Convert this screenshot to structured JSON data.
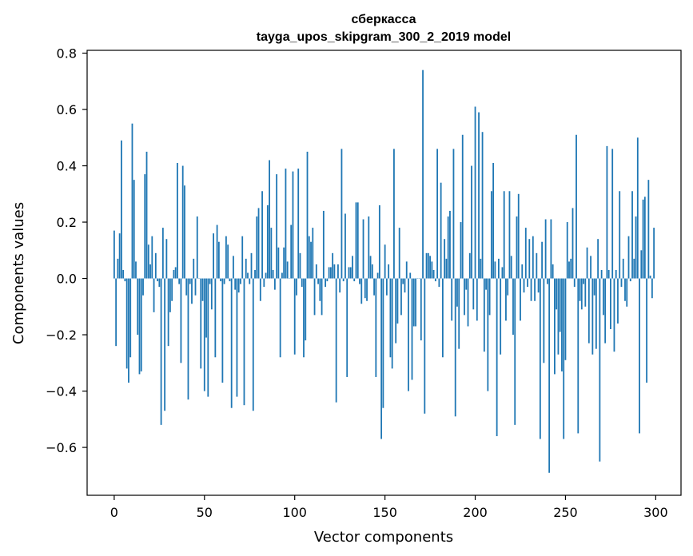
{
  "chart_data": {
    "type": "bar",
    "title": "сберкасса",
    "subtitle": "tayga_upos_skipgram_300_2_2019 model",
    "xlabel": "Vector components",
    "ylabel": "Components values",
    "xlim": [
      -15,
      314
    ],
    "ylim": [
      -0.77,
      0.81
    ],
    "xticks": [
      0,
      50,
      100,
      150,
      200,
      250,
      300
    ],
    "xtick_labels": [
      "0",
      "50",
      "100",
      "150",
      "200",
      "250",
      "300"
    ],
    "yticks": [
      -0.6,
      -0.4,
      -0.2,
      0.0,
      0.2,
      0.4,
      0.6,
      0.8
    ],
    "ytick_labels": [
      "−0.6",
      "−0.4",
      "−0.2",
      "0.0",
      "0.2",
      "0.4",
      "0.6",
      "0.8"
    ],
    "grid": false,
    "legend": "none",
    "bar_color": "#1f77b4",
    "x": "0..299",
    "values": [
      0.17,
      -0.24,
      0.07,
      0.16,
      0.49,
      0.03,
      -0.01,
      -0.32,
      -0.37,
      -0.28,
      0.55,
      0.35,
      0.06,
      -0.2,
      -0.34,
      -0.33,
      -0.06,
      0.37,
      0.45,
      0.12,
      0.05,
      0.15,
      -0.12,
      0.09,
      -0.01,
      -0.03,
      -0.52,
      0.18,
      -0.47,
      0.14,
      -0.24,
      -0.12,
      -0.08,
      0.03,
      0.04,
      0.41,
      -0.02,
      -0.3,
      0.4,
      0.33,
      -0.06,
      -0.43,
      -0.02,
      -0.09,
      0.07,
      -0.06,
      0.22,
      0.0,
      -0.32,
      -0.08,
      -0.4,
      -0.21,
      -0.42,
      -0.02,
      -0.11,
      0.16,
      -0.28,
      0.19,
      0.13,
      -0.01,
      -0.37,
      -0.02,
      0.15,
      0.12,
      -0.01,
      -0.46,
      0.08,
      -0.04,
      -0.42,
      -0.05,
      -0.02,
      0.15,
      -0.45,
      0.07,
      0.02,
      -0.02,
      0.09,
      -0.47,
      0.03,
      0.22,
      0.25,
      -0.08,
      0.31,
      -0.03,
      0.02,
      0.26,
      0.42,
      0.18,
      0.03,
      -0.04,
      0.37,
      0.11,
      -0.28,
      0.02,
      0.11,
      0.39,
      0.06,
      0.0,
      0.19,
      0.38,
      -0.27,
      -0.06,
      0.39,
      0.09,
      -0.03,
      -0.28,
      -0.22,
      0.45,
      0.15,
      0.13,
      0.18,
      -0.13,
      0.05,
      -0.02,
      -0.08,
      -0.13,
      0.24,
      -0.03,
      -0.01,
      0.04,
      0.04,
      0.09,
      0.05,
      -0.44,
      0.05,
      -0.05,
      0.46,
      -0.01,
      0.23,
      -0.35,
      0.04,
      0.04,
      0.08,
      -0.01,
      0.27,
      0.27,
      -0.02,
      -0.09,
      0.21,
      -0.07,
      -0.08,
      0.22,
      0.08,
      0.05,
      -0.06,
      -0.35,
      0.02,
      0.26,
      -0.57,
      -0.46,
      0.12,
      -0.06,
      0.05,
      -0.28,
      -0.32,
      0.46,
      -0.23,
      -0.16,
      0.18,
      -0.13,
      -0.02,
      -0.05,
      0.06,
      -0.4,
      0.02,
      -0.36,
      -0.17,
      -0.17,
      0.0,
      0.0,
      -0.22,
      0.74,
      -0.48,
      0.09,
      0.09,
      0.08,
      0.06,
      0.03,
      -0.01,
      0.46,
      -0.03,
      0.34,
      -0.28,
      0.14,
      0.07,
      0.22,
      0.24,
      -0.15,
      0.46,
      -0.49,
      -0.1,
      -0.25,
      0.2,
      0.51,
      -0.13,
      -0.04,
      -0.17,
      0.09,
      0.4,
      -0.11,
      0.61,
      -0.15,
      0.59,
      0.07,
      0.52,
      -0.26,
      -0.04,
      -0.4,
      -0.13,
      0.31,
      0.41,
      0.06,
      -0.56,
      0.07,
      -0.27,
      0.04,
      0.31,
      -0.15,
      -0.06,
      0.31,
      0.08,
      -0.2,
      -0.52,
      0.22,
      0.3,
      -0.15,
      0.05,
      -0.05,
      0.18,
      -0.03,
      0.14,
      -0.08,
      0.15,
      -0.08,
      0.09,
      -0.05,
      -0.57,
      0.13,
      -0.3,
      0.21,
      -0.02,
      -0.69,
      0.21,
      0.05,
      -0.34,
      -0.11,
      -0.27,
      -0.19,
      -0.33,
      -0.57,
      -0.29,
      0.2,
      0.06,
      0.07,
      0.25,
      -0.03,
      0.51,
      -0.55,
      -0.08,
      -0.11,
      -0.02,
      -0.1,
      0.11,
      -0.23,
      0.08,
      -0.27,
      -0.06,
      -0.25,
      0.14,
      -0.65,
      0.03,
      -0.13,
      -0.23,
      0.47,
      0.03,
      -0.18,
      0.46,
      -0.26,
      0.03,
      -0.16,
      0.31,
      -0.03,
      0.07,
      -0.08,
      -0.1,
      0.15,
      -0.01,
      0.31,
      0.07,
      0.22,
      0.5,
      -0.55,
      0.1,
      0.28,
      0.29,
      -0.37,
      0.35,
      0.01,
      -0.07,
      0.18
    ]
  }
}
